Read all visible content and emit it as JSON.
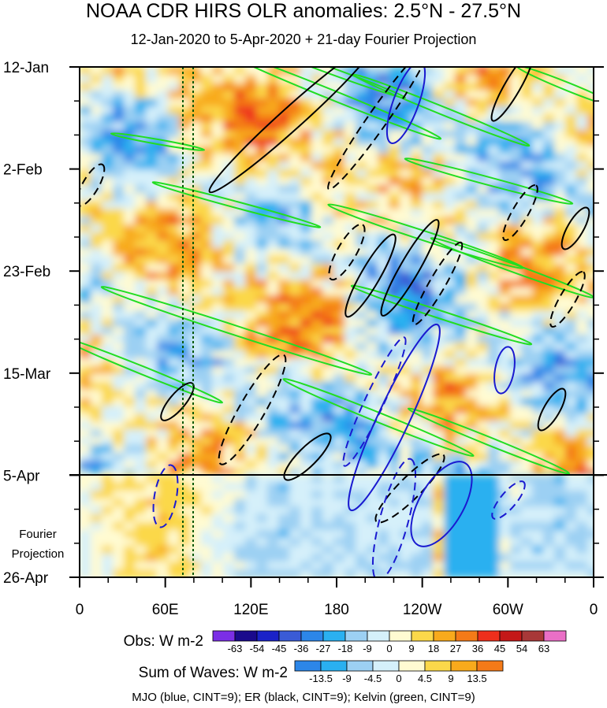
{
  "title": "NOAA CDR HIRS OLR anomalies: 2.5°N - 27.5°N",
  "subtitle": "12-Jan-2020 to 5-Apr-2020 + 21-day Fourier Projection",
  "chart_data": {
    "type": "heatmap",
    "description_kind": "Hovmoller longitude-time",
    "y_tick_labels": [
      "12-Jan",
      "2-Feb",
      "23-Feb",
      "15-Mar",
      "5-Apr",
      "26-Apr"
    ],
    "x_tick_labels": [
      "0",
      "60E",
      "120E",
      "180",
      "120W",
      "60W",
      "0"
    ],
    "x_range_deg": [
      0,
      360
    ],
    "time_range_days": [
      0,
      105
    ],
    "projection_start_day": 84,
    "projection_label": "Fourier Projection",
    "reference_lines_deg": [
      72,
      79
    ],
    "obs_legend": {
      "label": "Obs: W m-2",
      "levels": [
        "-63",
        "-54",
        "-45",
        "-36",
        "-27",
        "-18",
        "-9",
        "0",
        "9",
        "18",
        "27",
        "36",
        "45",
        "54",
        "63"
      ],
      "colors": [
        "#7b2ee6",
        "#1a0a8c",
        "#1a22c8",
        "#3a5bd6",
        "#2c86e8",
        "#2ab0f0",
        "#9cd0f3",
        "#d5f0fa",
        "#fffbd2",
        "#fbd84a",
        "#f8aa1c",
        "#f47a18",
        "#ee2f1c",
        "#c41818",
        "#a83838",
        "#ea6fc6"
      ]
    },
    "waves_legend": {
      "label": "Sum of Waves: W m-2",
      "levels": [
        "-13.5",
        "-9",
        "-4.5",
        "0",
        "4.5",
        "9",
        "13.5"
      ],
      "colors": [
        "#2c86e8",
        "#2ab0f0",
        "#9cd0f3",
        "#d5f0fa",
        "#fffbd2",
        "#fbd84a",
        "#f8aa1c",
        "#f47a18"
      ]
    },
    "contours": [
      {
        "name": "MJO",
        "color": "blue",
        "cint": 9
      },
      {
        "name": "ER",
        "color": "black",
        "cint": 9
      },
      {
        "name": "Kelvin",
        "color": "green",
        "cint": 9
      }
    ]
  },
  "caption": "MJO (blue, CINT=9); ER (black, CINT=9); Kelvin (green, CINT=9)",
  "colors": {
    "mjo": "#1a1ad0",
    "er": "#000000",
    "kelvin": "#22dd22",
    "ref_line": "#0a5a0a"
  }
}
